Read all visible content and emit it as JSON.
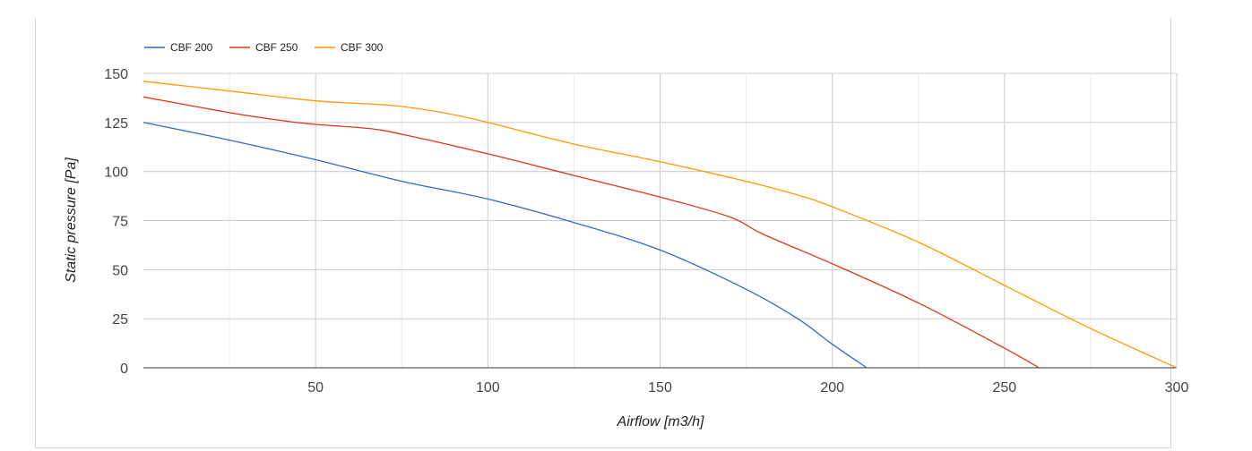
{
  "chart_data": {
    "type": "line",
    "xlabel": "Airflow [m3/h]",
    "ylabel": "Static pressure [Pa]",
    "xlim": [
      0,
      300
    ],
    "ylim": [
      0,
      150
    ],
    "x_ticks": [
      50,
      100,
      150,
      200,
      250,
      300
    ],
    "y_ticks": [
      0,
      25,
      50,
      75,
      100,
      125,
      150
    ],
    "grid": true,
    "legend_position": "top-left",
    "series": [
      {
        "name": "CBF 200",
        "color": "#3366cc",
        "points": [
          [
            0,
            125
          ],
          [
            25,
            116
          ],
          [
            50,
            106
          ],
          [
            75,
            95
          ],
          [
            100,
            86
          ],
          [
            125,
            74
          ],
          [
            150,
            60
          ],
          [
            175,
            40
          ],
          [
            190,
            25
          ],
          [
            200,
            12
          ],
          [
            210,
            0
          ]
        ]
      },
      {
        "name": "CBF 250",
        "color": "#dc3912",
        "points": [
          [
            0,
            138
          ],
          [
            25,
            130
          ],
          [
            40,
            126
          ],
          [
            50,
            124
          ],
          [
            65,
            122
          ],
          [
            75,
            119
          ],
          [
            100,
            109
          ],
          [
            125,
            98
          ],
          [
            150,
            87
          ],
          [
            170,
            77
          ],
          [
            180,
            68
          ],
          [
            200,
            53
          ],
          [
            225,
            33
          ],
          [
            250,
            10
          ],
          [
            260,
            0
          ]
        ]
      },
      {
        "name": "CBF 300",
        "color": "#ff9900",
        "points": [
          [
            0,
            146
          ],
          [
            25,
            141
          ],
          [
            50,
            136
          ],
          [
            70,
            134
          ],
          [
            80,
            132
          ],
          [
            90,
            129
          ],
          [
            100,
            125
          ],
          [
            125,
            114
          ],
          [
            150,
            105
          ],
          [
            175,
            95
          ],
          [
            190,
            88
          ],
          [
            200,
            82
          ],
          [
            225,
            64
          ],
          [
            250,
            42
          ],
          [
            275,
            20
          ],
          [
            300,
            0
          ]
        ]
      }
    ]
  }
}
